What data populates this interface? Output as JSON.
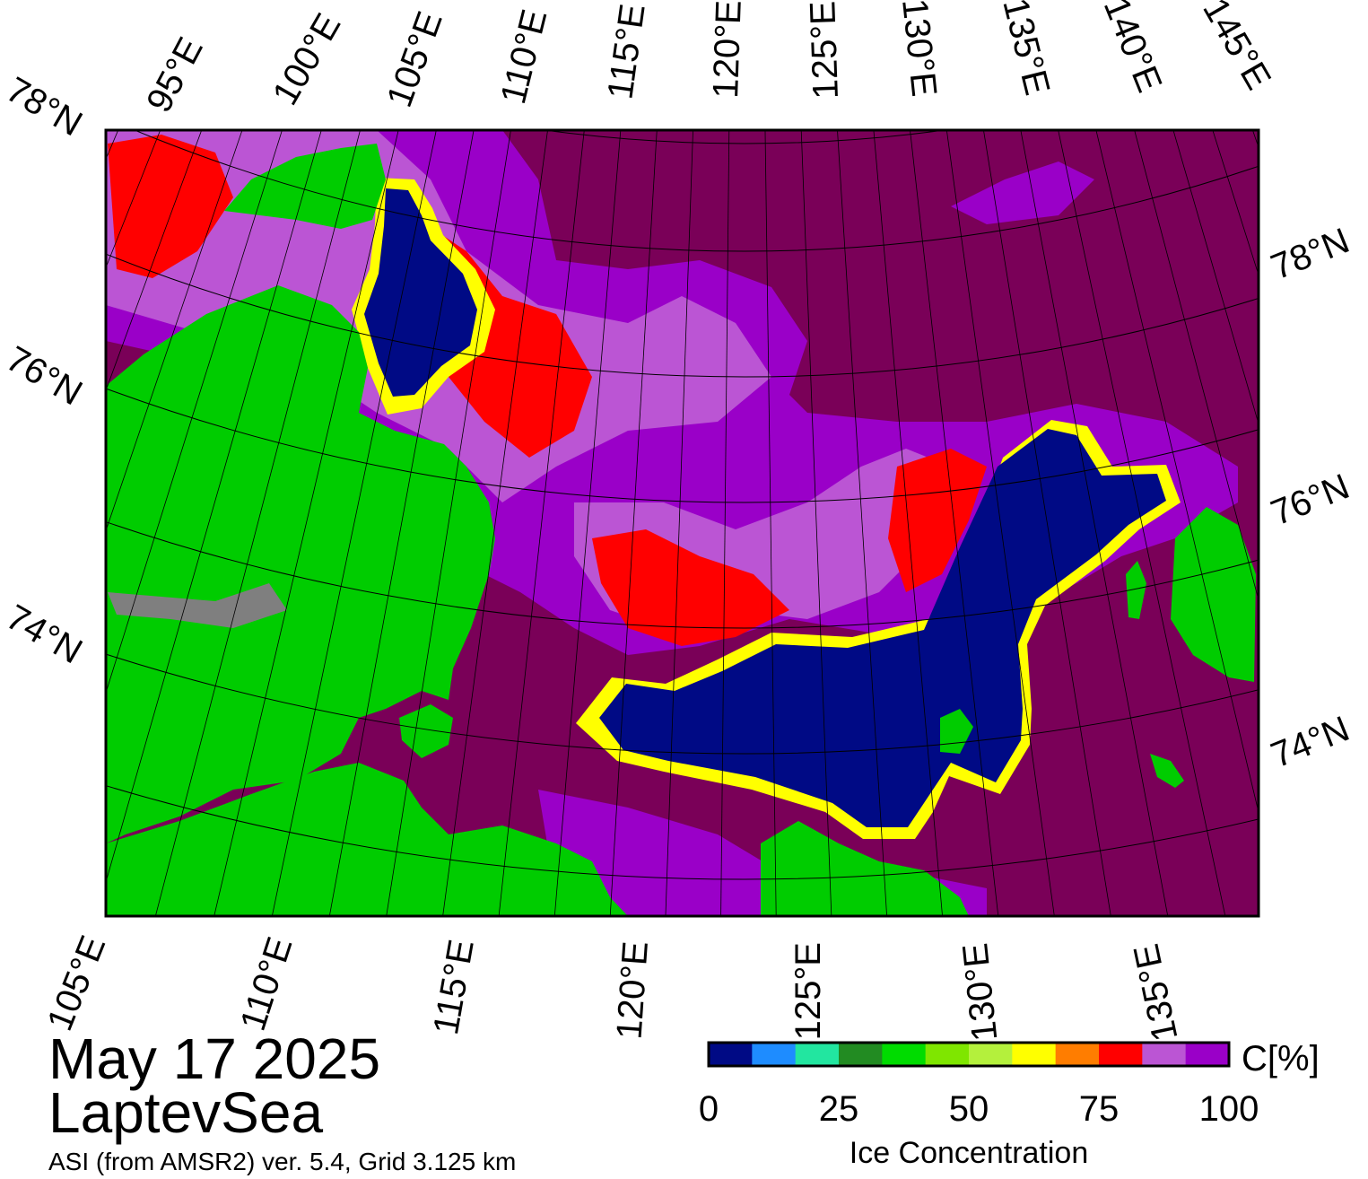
{
  "header": {
    "date": "May 17 2025",
    "region": "LaptevSea",
    "source": "ASI (from AMSR2) ver. 5.4,  Grid 3.125 km"
  },
  "map": {
    "top_lon_labels": [
      "95°E",
      "100°E",
      "105°E",
      "110°E",
      "115°E",
      "120°E",
      "125°E",
      "130°E",
      "135°E",
      "140°E",
      "145°E"
    ],
    "left_lat_labels": [
      "78°N",
      "76°N",
      "74°N"
    ],
    "right_lat_labels": [
      "78°N",
      "76°N",
      "74°N"
    ],
    "bottom_lon_labels": [
      "105°E",
      "110°E",
      "115°E",
      "120°E",
      "125°E",
      "130°E",
      "135°E"
    ],
    "colors": {
      "land": "#00cc00",
      "land_ice": "#7f7f7f",
      "open_water": "#000a85",
      "pack_ice": "#7a0058",
      "ice_mid": "#9a00c8",
      "ice_light": "#bb55d4",
      "edge_red": "#ff0000",
      "edge_yellow": "#ffff00"
    }
  },
  "colorbar": {
    "title": "Ice Concentration",
    "unit": "C[%]",
    "tick_labels": [
      "0",
      "25",
      "50",
      "75",
      "100"
    ],
    "colors": [
      "#000a85",
      "#1e8cff",
      "#22e6a0",
      "#228b22",
      "#00dc00",
      "#7fe600",
      "#b4f03c",
      "#ffff00",
      "#ff7d00",
      "#ff0000",
      "#bb55d4",
      "#9a00c8"
    ]
  }
}
